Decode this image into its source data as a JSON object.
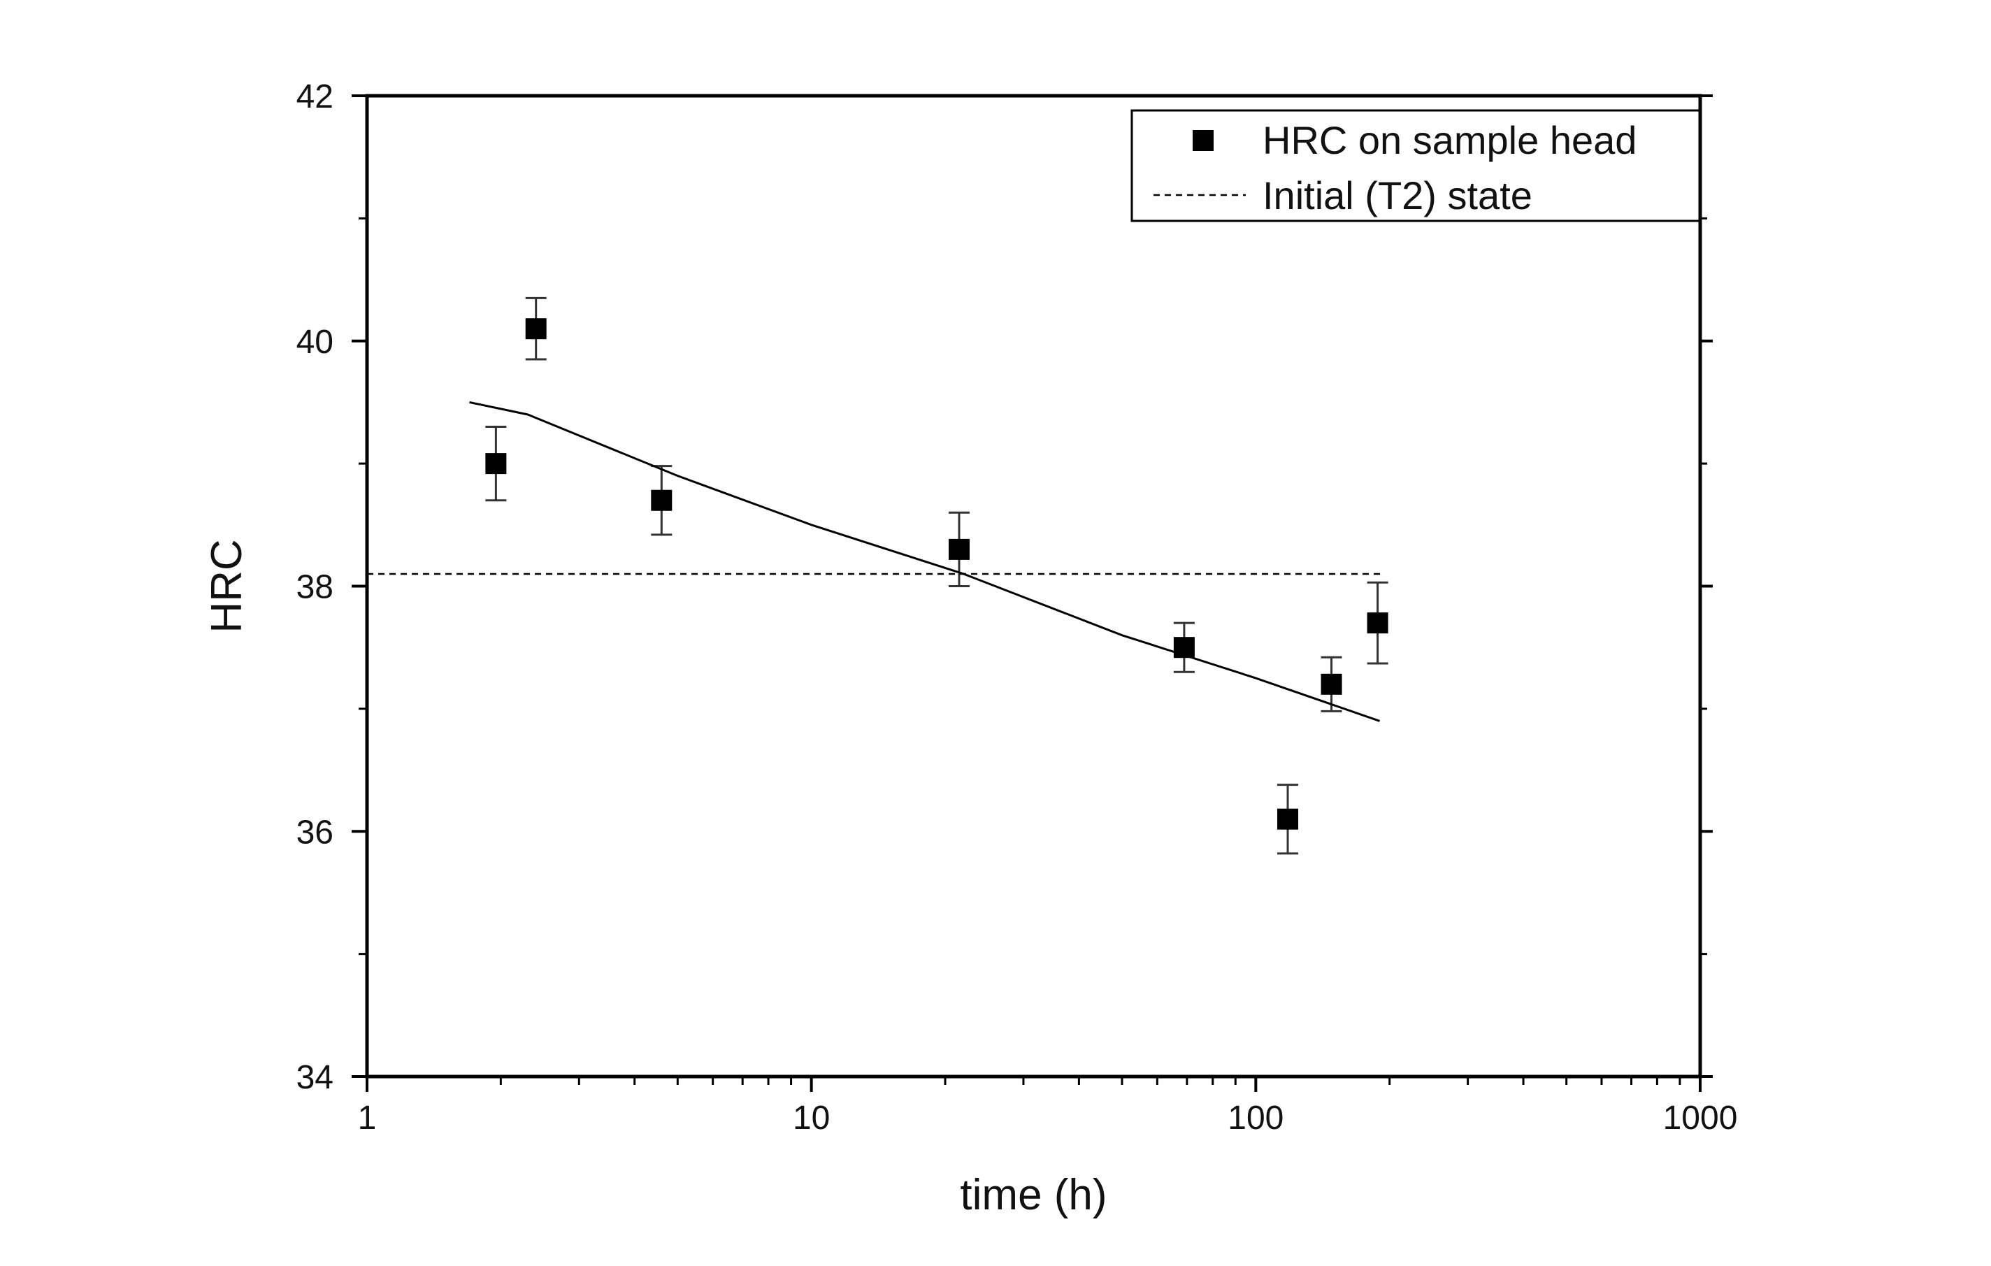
{
  "chart_data": {
    "type": "scatter",
    "title": "",
    "xlabel": "time (h)",
    "ylabel": "HRC",
    "xscale": "log",
    "xlim": [
      1,
      1000
    ],
    "ylim": [
      34,
      42
    ],
    "xticks": [
      1,
      10,
      100,
      1000
    ],
    "xtick_labels": [
      "1",
      "10",
      "100",
      "1000"
    ],
    "yticks": [
      34,
      36,
      38,
      40,
      42
    ],
    "ytick_labels": [
      "34",
      "36",
      "38",
      "40",
      "42"
    ],
    "grid": false,
    "legend_position": "top-right",
    "series": [
      {
        "name": "HRC on sample head",
        "kind": "scatter-errorbar",
        "marker": "square",
        "x": [
          1.95,
          2.4,
          4.6,
          21.5,
          69,
          118,
          148,
          188
        ],
        "y": [
          39.0,
          40.1,
          38.7,
          38.3,
          37.5,
          36.1,
          37.2,
          37.7
        ],
        "err": [
          0.3,
          0.25,
          0.28,
          0.3,
          0.2,
          0.28,
          0.22,
          0.33
        ]
      },
      {
        "name": "Initial (T2) state",
        "kind": "line",
        "style": "dashed",
        "x": [
          1,
          195
        ],
        "y": [
          38.1,
          38.1
        ]
      },
      {
        "name": "",
        "kind": "line",
        "style": "solid",
        "x": [
          1.7,
          2.3,
          5,
          10,
          22,
          50,
          100,
          190
        ],
        "y": [
          39.5,
          39.4,
          38.9,
          38.5,
          38.1,
          37.6,
          37.25,
          36.9
        ]
      }
    ]
  }
}
